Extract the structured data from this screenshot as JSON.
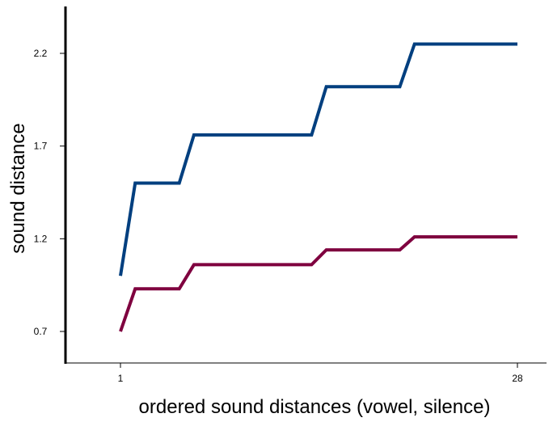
{
  "chart_data": {
    "type": "line",
    "title": "",
    "xlabel": "ordered sound distances (vowel, silence)",
    "ylabel": "sound distance",
    "xlim": [
      1,
      28
    ],
    "ylim": [
      0.7,
      2.2
    ],
    "x_ticks": [
      1,
      28
    ],
    "x_tick_labels": [
      "1",
      "28"
    ],
    "y_ticks": [
      0.7,
      1.2,
      1.7,
      2.2
    ],
    "y_tick_labels": [
      "0.7",
      "1.2",
      "1.7",
      "2.2"
    ],
    "grid": false,
    "legend": "none",
    "x": [
      1,
      2,
      5,
      6,
      14,
      15,
      20,
      21,
      28
    ],
    "series": [
      {
        "color": "#003f7f",
        "values": [
          1.0,
          1.5,
          1.5,
          1.76,
          1.76,
          2.02,
          2.02,
          2.25,
          2.25
        ]
      },
      {
        "color": "#7f003f",
        "values": [
          0.7,
          0.93,
          0.93,
          1.06,
          1.06,
          1.14,
          1.14,
          1.21,
          1.21
        ]
      }
    ]
  }
}
